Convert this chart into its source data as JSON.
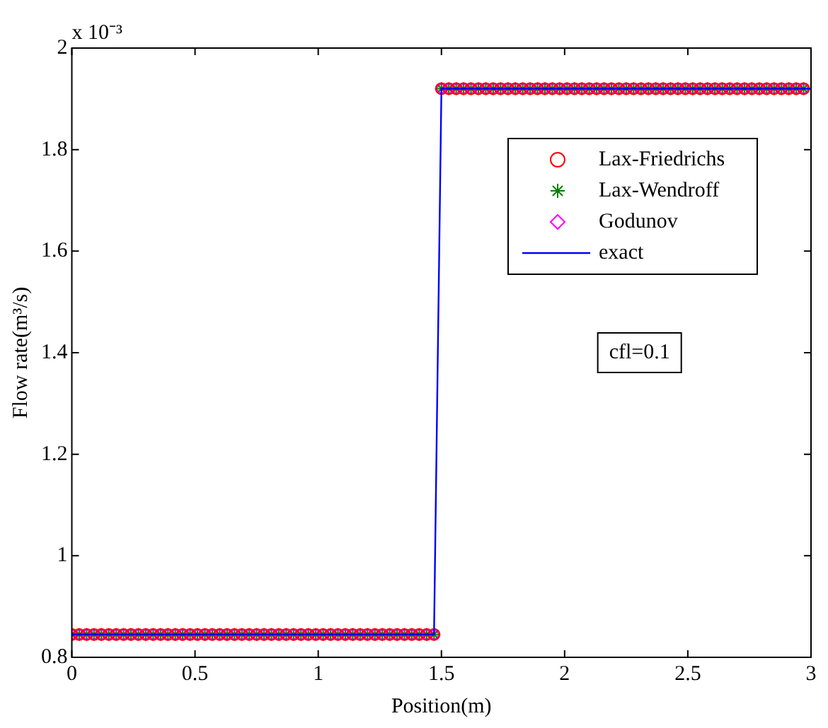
{
  "chart_data": {
    "type": "scatter",
    "xlabel": "Position(m)",
    "ylabel": "Flow rate(m³/s)",
    "annotations": [
      "x 10⁻³",
      "cfl=0.1"
    ],
    "x": [
      0,
      0.03,
      0.06,
      0.09,
      0.12,
      0.15,
      0.18,
      0.21,
      0.24,
      0.27,
      0.3,
      0.33,
      0.36,
      0.39,
      0.42,
      0.45,
      0.48,
      0.51,
      0.54,
      0.57,
      0.6,
      0.63,
      0.66,
      0.69,
      0.72,
      0.75,
      0.78,
      0.81,
      0.84,
      0.87,
      0.9,
      0.93,
      0.96,
      0.99,
      1.02,
      1.05,
      1.08,
      1.11,
      1.14,
      1.17,
      1.2,
      1.23,
      1.26,
      1.29,
      1.32,
      1.35,
      1.38,
      1.41,
      1.44,
      1.47,
      1.5,
      1.53,
      1.56,
      1.59,
      1.62,
      1.65,
      1.68,
      1.71,
      1.74,
      1.77,
      1.8,
      1.83,
      1.86,
      1.89,
      1.92,
      1.95,
      1.98,
      2.01,
      2.04,
      2.07,
      2.1,
      2.13,
      2.16,
      2.19,
      2.22,
      2.25,
      2.28,
      2.31,
      2.34,
      2.37,
      2.4,
      2.43,
      2.46,
      2.49,
      2.52,
      2.55,
      2.58,
      2.61,
      2.64,
      2.67,
      2.7,
      2.73,
      2.76,
      2.79,
      2.82,
      2.85,
      2.88,
      2.91,
      2.94,
      2.97
    ],
    "series": [
      {
        "name": "Lax-Friedrichs",
        "color": "#ff0000",
        "marker": "circle",
        "values": [
          0.845,
          0.845,
          0.845,
          0.845,
          0.845,
          0.845,
          0.845,
          0.845,
          0.845,
          0.845,
          0.845,
          0.845,
          0.845,
          0.845,
          0.845,
          0.845,
          0.845,
          0.845,
          0.845,
          0.845,
          0.845,
          0.845,
          0.845,
          0.845,
          0.845,
          0.845,
          0.845,
          0.845,
          0.845,
          0.845,
          0.845,
          0.845,
          0.845,
          0.845,
          0.845,
          0.845,
          0.845,
          0.845,
          0.845,
          0.845,
          0.845,
          0.845,
          0.845,
          0.845,
          0.845,
          0.845,
          0.845,
          0.845,
          0.845,
          0.845,
          1.92,
          1.92,
          1.92,
          1.92,
          1.92,
          1.92,
          1.92,
          1.92,
          1.92,
          1.92,
          1.92,
          1.92,
          1.92,
          1.92,
          1.92,
          1.92,
          1.92,
          1.92,
          1.92,
          1.92,
          1.92,
          1.92,
          1.92,
          1.92,
          1.92,
          1.92,
          1.92,
          1.92,
          1.92,
          1.92,
          1.92,
          1.92,
          1.92,
          1.92,
          1.92,
          1.92,
          1.92,
          1.92,
          1.92,
          1.92,
          1.92,
          1.92,
          1.92,
          1.92,
          1.92,
          1.92,
          1.92,
          1.92,
          1.92,
          1.92
        ]
      },
      {
        "name": "Lax-Wendroff",
        "color": "#008000",
        "marker": "cross",
        "values": [
          0.845,
          0.845,
          0.845,
          0.845,
          0.845,
          0.845,
          0.845,
          0.845,
          0.845,
          0.845,
          0.845,
          0.845,
          0.845,
          0.845,
          0.845,
          0.845,
          0.845,
          0.845,
          0.845,
          0.845,
          0.845,
          0.845,
          0.845,
          0.845,
          0.845,
          0.845,
          0.845,
          0.845,
          0.845,
          0.845,
          0.845,
          0.845,
          0.845,
          0.845,
          0.845,
          0.845,
          0.845,
          0.845,
          0.845,
          0.845,
          0.845,
          0.845,
          0.845,
          0.845,
          0.845,
          0.845,
          0.845,
          0.845,
          0.845,
          0.845,
          1.92,
          1.92,
          1.92,
          1.92,
          1.92,
          1.92,
          1.92,
          1.92,
          1.92,
          1.92,
          1.92,
          1.92,
          1.92,
          1.92,
          1.92,
          1.92,
          1.92,
          1.92,
          1.92,
          1.92,
          1.92,
          1.92,
          1.92,
          1.92,
          1.92,
          1.92,
          1.92,
          1.92,
          1.92,
          1.92,
          1.92,
          1.92,
          1.92,
          1.92,
          1.92,
          1.92,
          1.92,
          1.92,
          1.92,
          1.92,
          1.92,
          1.92,
          1.92,
          1.92,
          1.92,
          1.92,
          1.92,
          1.92,
          1.92,
          1.92
        ]
      },
      {
        "name": "Godunov",
        "color": "#ff00ff",
        "marker": "diamond",
        "values": [
          0.845,
          0.845,
          0.845,
          0.845,
          0.845,
          0.845,
          0.845,
          0.845,
          0.845,
          0.845,
          0.845,
          0.845,
          0.845,
          0.845,
          0.845,
          0.845,
          0.845,
          0.845,
          0.845,
          0.845,
          0.845,
          0.845,
          0.845,
          0.845,
          0.845,
          0.845,
          0.845,
          0.845,
          0.845,
          0.845,
          0.845,
          0.845,
          0.845,
          0.845,
          0.845,
          0.845,
          0.845,
          0.845,
          0.845,
          0.845,
          0.845,
          0.845,
          0.845,
          0.845,
          0.845,
          0.845,
          0.845,
          0.845,
          0.845,
          0.845,
          1.92,
          1.92,
          1.92,
          1.92,
          1.92,
          1.92,
          1.92,
          1.92,
          1.92,
          1.92,
          1.92,
          1.92,
          1.92,
          1.92,
          1.92,
          1.92,
          1.92,
          1.92,
          1.92,
          1.92,
          1.92,
          1.92,
          1.92,
          1.92,
          1.92,
          1.92,
          1.92,
          1.92,
          1.92,
          1.92,
          1.92,
          1.92,
          1.92,
          1.92,
          1.92,
          1.92,
          1.92,
          1.92,
          1.92,
          1.92,
          1.92,
          1.92,
          1.92,
          1.92,
          1.92,
          1.92,
          1.92,
          1.92,
          1.92,
          1.92
        ]
      },
      {
        "name": "exact",
        "type": "line",
        "color": "#0000ff",
        "marker": "none",
        "line_style": "solid",
        "x": [
          0,
          1.47,
          1.5,
          3
        ],
        "values": [
          0.845,
          0.845,
          1.92,
          1.92
        ]
      }
    ],
    "xlim": [
      0,
      3
    ],
    "xticks": [
      0,
      0.5,
      1,
      1.5,
      2,
      2.5,
      3
    ],
    "ylim": [
      0.8,
      2
    ],
    "yticks": [
      0.8,
      1,
      1.2,
      1.4,
      1.6,
      1.8,
      2
    ],
    "grid": false,
    "legend": "top right"
  }
}
